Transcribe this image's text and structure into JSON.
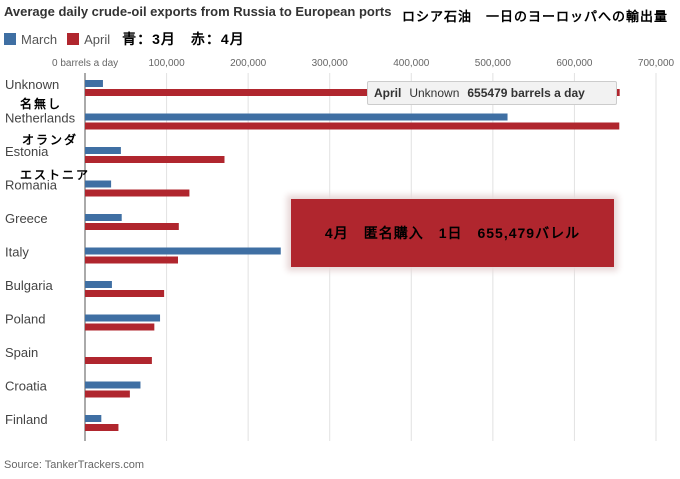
{
  "header": {
    "title": "Average daily crude-oil exports from Russia to European ports",
    "jp_title": "ロシア石油　一日のヨーロッパへの輸出量",
    "jp_legend": "青：3月　赤：4月",
    "source": "Source: TankerTrackers.com"
  },
  "colors": {
    "march": "#3f6fa3",
    "april": "#b0262e"
  },
  "tooltip": {
    "series": "April",
    "category": "Unknown",
    "value": "655479 barrels a day"
  },
  "callout": {
    "text": "4月　匿名購入　1日　655,479バレル"
  },
  "annotations": {
    "unknown_jp": "名無し",
    "netherlands_jp": "オランダ",
    "estonia_jp": "エストニア"
  },
  "chart_data": {
    "type": "bar",
    "orientation": "horizontal",
    "title": "Average daily crude-oil exports from Russia to European ports",
    "categories": [
      "Unknown",
      "Netherlands",
      "Estonia",
      "Romania",
      "Greece",
      "Italy",
      "Bulgaria",
      "Poland",
      "Spain",
      "Croatia",
      "Finland"
    ],
    "series": [
      {
        "name": "March",
        "values": [
          22000,
          518000,
          44000,
          32000,
          45000,
          240000,
          33000,
          92000,
          0,
          68000,
          20000
        ]
      },
      {
        "name": "April",
        "values": [
          655479,
          655000,
          171000,
          128000,
          115000,
          114000,
          97000,
          85000,
          82000,
          55000,
          41000
        ]
      }
    ],
    "xlim": [
      0,
      700000
    ],
    "xticks": [
      "0 barrels a day",
      "100,000",
      "200,000",
      "300,000",
      "400,000",
      "500,000",
      "600,000",
      "700,000"
    ],
    "grid": true,
    "legend": "top-left"
  }
}
